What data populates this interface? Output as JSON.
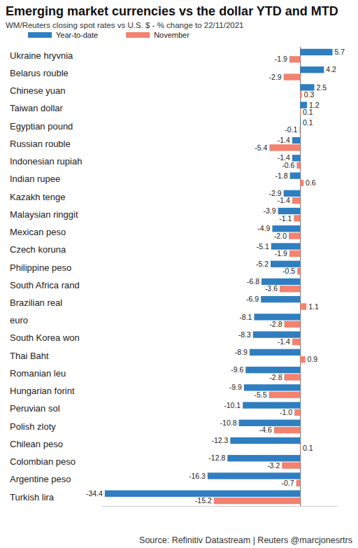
{
  "chart_data": {
    "type": "bar",
    "orientation": "horizontal",
    "title": "Emerging market currencies vs the dollar YTD and MTD",
    "subtitle": "WM/Reuters closing spot rates vs U.S. $ - % change to 22/11/2021",
    "annotations": [
      "Source: Refinitiv Datastream | Reuters @marcjonesrtrs"
    ],
    "categories": [
      "Ukraine hryvnia",
      "Belarus rouble",
      "Chinese yuan",
      "Taiwan dollar",
      "Egyptian pound",
      "Russian rouble",
      "Indonesian rupiah",
      "Indian rupee",
      "Kazakh tenge",
      "Malaysian ringgit",
      "Mexican peso",
      "Czech koruna",
      "Philippine peso",
      "South Africa rand",
      "Brazilian real",
      "euro",
      "South Korea won",
      "Thai Baht",
      "Romanian leu",
      "Hungarian forint",
      "Peruvian sol",
      "Polish zloty",
      "Chilean peso",
      "Colombian peso",
      "Argentine peso",
      "Turkish lira"
    ],
    "series": [
      {
        "name": "Year-to-date",
        "color": "#2f7ec0",
        "values": [
          5.7,
          4.2,
          2.5,
          1.2,
          0.1,
          -1.4,
          -1.4,
          -1.8,
          -2.9,
          -3.9,
          -4.9,
          -5.1,
          -5.2,
          -6.8,
          -6.9,
          -8.1,
          -8.3,
          -8.9,
          -9.6,
          -9.9,
          -10.1,
          -10.8,
          -12.3,
          -12.8,
          -16.3,
          -34.4
        ],
        "value_labels": [
          "5.7",
          "4.2",
          "2.5",
          "1.2",
          "0.1",
          "-1.4",
          "-1.4",
          "-1.8",
          "-2.9",
          "-3.9",
          "-4.9",
          "-5.1",
          "-5.2",
          "-6.8",
          "-6.9",
          "-8.1",
          "-8.3",
          "-8.9",
          "-9.6",
          "-9.9",
          "-10.1",
          "-10.8",
          "-12.3",
          "-12.8",
          "-16.3",
          "-34.4"
        ]
      },
      {
        "name": "November",
        "color": "#f3826f",
        "values": [
          -1.9,
          -2.9,
          0.3,
          0.1,
          -0.1,
          -5.4,
          -0.6,
          0.6,
          -1.4,
          -1.1,
          -2.0,
          -1.9,
          -0.5,
          -3.6,
          1.1,
          -2.8,
          -1.4,
          0.9,
          -2.8,
          -5.5,
          -1.0,
          -4.6,
          0.1,
          -3.2,
          -0.7,
          -15.2
        ],
        "value_labels": [
          "-1.9",
          "-2.9",
          "0.3",
          "0.1",
          "-0.1",
          "-5.4",
          "-0.6",
          "0.6",
          "-1.4",
          "-1.1",
          "-2.0",
          "-1.9",
          "-0.5",
          "-3.6",
          "1.1",
          "-2.8",
          "-1.4",
          "0.9",
          "-2.8",
          "-5.5",
          "-1.0",
          "-4.6",
          "0.1",
          "-3.2",
          "-0.7",
          "-15.2"
        ]
      }
    ],
    "xlim": [
      -35,
      6.5
    ],
    "xticks": [
      0
    ],
    "tick_labels": "y",
    "data_labels": true,
    "legend": "top-left",
    "grid": false
  }
}
